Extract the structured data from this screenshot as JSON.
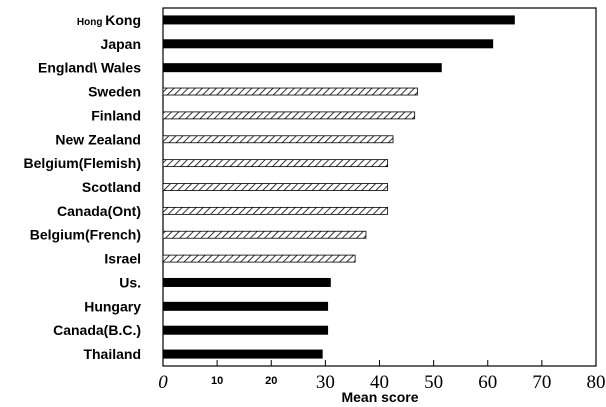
{
  "chart_data": {
    "type": "bar",
    "orientation": "horizontal",
    "xlabel": "Mean score",
    "xlim": [
      0,
      80
    ],
    "x_tick_labels": [
      "0",
      "10",
      "20",
      "30",
      "40",
      "50",
      "60",
      "70",
      "80"
    ],
    "grid": false,
    "bars": [
      {
        "label": "Hong Kong",
        "value": 65,
        "fill": "solid"
      },
      {
        "label": "Japan",
        "value": 61,
        "fill": "solid"
      },
      {
        "label": "England\\ Wales",
        "value": 51.5,
        "fill": "solid"
      },
      {
        "label": "Sweden",
        "value": 47,
        "fill": "hatched"
      },
      {
        "label": "Finland",
        "value": 46.5,
        "fill": "hatched"
      },
      {
        "label": "New Zealand",
        "value": 42.5,
        "fill": "hatched"
      },
      {
        "label": "Belgium(Flemish)",
        "value": 41.5,
        "fill": "hatched"
      },
      {
        "label": "Scotland",
        "value": 41.5,
        "fill": "hatched"
      },
      {
        "label": "Canada(Ont)",
        "value": 41.5,
        "fill": "hatched"
      },
      {
        "label": "Belgium(French)",
        "value": 37.5,
        "fill": "hatched"
      },
      {
        "label": "Israel",
        "value": 35.5,
        "fill": "hatched"
      },
      {
        "label": "Us.",
        "value": 31,
        "fill": "solid"
      },
      {
        "label": "Hungary",
        "value": 30.5,
        "fill": "solid"
      },
      {
        "label": "Canada(B.C.)",
        "value": 30.5,
        "fill": "solid"
      },
      {
        "label": "Thailand",
        "value": 29.5,
        "fill": "solid"
      }
    ],
    "colors": {
      "solid": "#000000",
      "hatch": "#000000",
      "background": "#ffffff"
    }
  }
}
